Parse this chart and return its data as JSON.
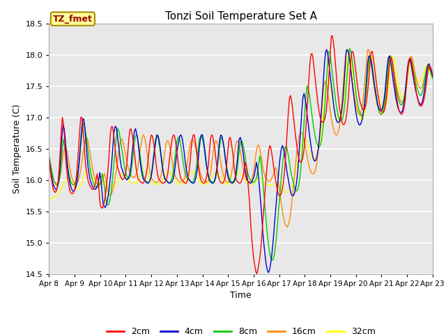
{
  "title": "Tonzi Soil Temperature Set A",
  "ylabel": "Soil Temperature (C)",
  "xlabel": "Time",
  "ylim": [
    14.5,
    18.5
  ],
  "label_text": "TZ_fmet",
  "bg_color": "#e8e8e8",
  "line_colors": {
    "2cm": "#ff0000",
    "4cm": "#0000cc",
    "8cm": "#00cc00",
    "16cm": "#ff8800",
    "32cm": "#ffff00"
  },
  "xtick_labels": [
    "Apr 8",
    "Apr 9",
    "Apr 10",
    "Apr 11",
    "Apr 12",
    "Apr 13",
    "Apr 14",
    "Apr 15",
    "Apr 16",
    "Apr 17",
    "Apr 18",
    "Apr 19",
    "Apr 20",
    "Apr 21",
    "Apr 22",
    "Apr 23"
  ],
  "data_2cm": [
    16.35,
    16.2,
    16.05,
    15.95,
    15.85,
    15.82,
    15.8,
    15.82,
    15.88,
    16.0,
    16.2,
    16.5,
    16.8,
    17.0,
    16.9,
    16.7,
    16.4,
    16.2,
    16.05,
    15.95,
    15.85,
    15.8,
    15.78,
    15.78,
    15.8,
    15.85,
    15.95,
    16.1,
    16.3,
    16.55,
    16.8,
    17.0,
    17.0,
    16.85,
    16.65,
    16.4,
    16.2,
    16.1,
    16.0,
    15.95,
    15.9,
    15.88,
    15.85,
    15.85,
    15.88,
    15.92,
    16.0,
    16.1,
    15.98,
    15.8,
    15.6,
    15.56,
    15.55,
    15.58,
    15.65,
    15.75,
    15.9,
    16.05,
    16.25,
    16.5,
    16.75,
    16.85,
    16.85,
    16.75,
    16.6,
    16.45,
    16.3,
    16.2,
    16.15,
    16.1,
    16.05,
    16.02,
    16.0,
    16.02,
    16.05,
    16.12,
    16.25,
    16.45,
    16.65,
    16.8,
    16.82,
    16.75,
    16.65,
    16.5,
    16.35,
    16.2,
    16.1,
    16.02,
    16.0,
    15.98,
    15.96,
    15.95,
    15.95,
    15.98,
    16.02,
    16.1,
    16.2,
    16.35,
    16.5,
    16.65,
    16.72,
    16.7,
    16.62,
    16.5,
    16.35,
    16.2,
    16.1,
    16.02,
    16.0,
    15.98,
    15.96,
    15.95,
    15.95,
    15.96,
    15.98,
    16.02,
    16.1,
    16.22,
    16.38,
    16.5,
    16.62,
    16.7,
    16.72,
    16.68,
    16.58,
    16.45,
    16.3,
    16.18,
    16.08,
    16.02,
    16.0,
    15.98,
    15.96,
    15.95,
    15.95,
    15.98,
    16.05,
    16.15,
    16.3,
    16.5,
    16.65,
    16.72,
    16.72,
    16.62,
    16.5,
    16.35,
    16.2,
    16.1,
    16.02,
    15.98,
    15.96,
    15.95,
    15.95,
    15.98,
    16.05,
    16.15,
    16.28,
    16.5,
    16.68,
    16.72,
    16.7,
    16.6,
    16.5,
    16.35,
    16.22,
    16.1,
    16.02,
    15.98,
    15.96,
    15.95,
    15.95,
    15.98,
    16.02,
    16.15,
    16.3,
    16.5,
    16.65,
    16.68,
    16.62,
    16.5,
    16.38,
    16.2,
    16.08,
    16.0,
    15.98,
    15.96,
    15.95,
    15.95,
    15.98,
    16.02,
    16.08,
    16.18,
    16.28,
    16.2,
    16.05,
    15.85,
    15.65,
    15.35,
    15.1,
    14.92,
    14.75,
    14.65,
    14.55,
    14.5,
    14.55,
    14.65,
    14.75,
    14.9,
    15.1,
    15.35,
    15.55,
    15.78,
    16.0,
    16.2,
    16.35,
    16.5,
    16.55,
    16.5,
    16.4,
    16.28,
    16.15,
    16.05,
    15.95,
    15.85,
    15.78,
    15.75,
    15.75,
    15.78,
    15.85,
    15.95,
    16.1,
    16.3,
    16.55,
    16.82,
    17.1,
    17.3,
    17.35,
    17.28,
    17.15,
    17.0,
    16.85,
    16.7,
    16.58,
    16.45,
    16.35,
    16.3,
    16.28,
    16.3,
    16.35,
    16.45,
    16.6,
    16.8,
    17.05,
    17.3,
    17.6,
    17.85,
    18.0,
    18.02,
    17.95,
    17.8,
    17.65,
    17.5,
    17.35,
    17.2,
    17.1,
    17.0,
    16.95,
    16.92,
    16.92,
    16.95,
    17.0,
    17.1,
    17.28,
    17.5,
    17.78,
    18.05,
    18.3,
    18.3,
    18.2,
    18.05,
    17.85,
    17.65,
    17.45,
    17.3,
    17.15,
    17.05,
    16.95,
    16.9,
    16.88,
    16.9,
    16.95,
    17.05,
    17.2,
    17.4,
    17.65,
    17.92,
    18.05,
    18.05,
    17.98,
    17.85,
    17.72,
    17.58,
    17.45,
    17.35,
    17.25,
    17.2,
    17.15,
    17.12,
    17.12,
    17.15,
    17.22,
    17.35,
    17.5,
    17.7,
    17.92,
    18.05,
    18.05,
    17.95,
    17.82,
    17.68,
    17.55,
    17.42,
    17.32,
    17.22,
    17.15,
    17.1,
    17.08,
    17.08,
    17.12,
    17.2,
    17.32,
    17.5,
    17.7,
    17.9,
    17.95,
    17.92,
    17.82,
    17.68,
    17.55,
    17.42,
    17.3,
    17.2,
    17.12,
    17.08,
    17.05,
    17.05,
    17.08,
    17.15,
    17.25,
    17.42,
    17.62,
    17.8,
    17.92,
    17.95,
    17.92,
    17.82,
    17.72,
    17.6,
    17.5,
    17.4,
    17.32,
    17.25,
    17.2,
    17.18,
    17.18,
    17.2,
    17.25,
    17.32,
    17.42,
    17.55,
    17.68,
    17.78,
    17.82,
    17.8,
    17.75,
    17.68
  ],
  "data_4cm": [
    16.35,
    16.22,
    16.1,
    16.0,
    15.92,
    15.88,
    15.85,
    15.85,
    15.9,
    16.0,
    16.18,
    16.45,
    16.72,
    16.88,
    16.82,
    16.65,
    16.42,
    16.22,
    16.08,
    15.98,
    15.9,
    15.85,
    15.82,
    15.82,
    15.85,
    15.9,
    15.98,
    16.12,
    16.32,
    16.55,
    16.78,
    16.95,
    16.98,
    16.85,
    16.65,
    16.42,
    16.22,
    16.1,
    16.0,
    15.95,
    15.9,
    15.88,
    15.85,
    15.85,
    15.88,
    15.92,
    16.0,
    16.12,
    16.0,
    15.82,
    15.62,
    15.58,
    15.56,
    15.6,
    15.68,
    15.78,
    15.92,
    16.08,
    16.28,
    16.52,
    16.75,
    16.85,
    16.85,
    16.75,
    16.6,
    16.45,
    16.3,
    16.2,
    16.15,
    16.1,
    16.05,
    16.02,
    16.0,
    16.02,
    16.05,
    16.12,
    16.25,
    16.45,
    16.62,
    16.78,
    16.82,
    16.75,
    16.65,
    16.5,
    16.35,
    16.2,
    16.1,
    16.02,
    16.0,
    15.98,
    15.96,
    15.95,
    15.95,
    15.98,
    16.02,
    16.1,
    16.22,
    16.38,
    16.52,
    16.65,
    16.72,
    16.7,
    16.62,
    16.5,
    16.35,
    16.2,
    16.1,
    16.02,
    16.0,
    15.98,
    15.96,
    15.95,
    15.95,
    15.96,
    15.98,
    16.02,
    16.12,
    16.25,
    16.4,
    16.52,
    16.62,
    16.7,
    16.72,
    16.68,
    16.58,
    16.45,
    16.3,
    16.18,
    16.08,
    16.02,
    16.0,
    15.98,
    15.96,
    15.95,
    15.95,
    15.98,
    16.05,
    16.15,
    16.3,
    16.5,
    16.65,
    16.72,
    16.72,
    16.62,
    16.5,
    16.35,
    16.2,
    16.1,
    16.02,
    15.98,
    15.96,
    15.95,
    15.95,
    15.98,
    16.05,
    16.15,
    16.28,
    16.48,
    16.65,
    16.72,
    16.7,
    16.6,
    16.5,
    16.35,
    16.22,
    16.1,
    16.02,
    15.98,
    15.96,
    15.95,
    15.95,
    15.98,
    16.02,
    16.12,
    16.28,
    16.48,
    16.65,
    16.68,
    16.62,
    16.5,
    16.38,
    16.22,
    16.1,
    16.0,
    15.98,
    15.96,
    15.95,
    15.95,
    15.98,
    16.02,
    16.08,
    16.18,
    16.28,
    16.18,
    16.02,
    15.82,
    15.62,
    15.38,
    15.12,
    14.95,
    14.78,
    14.65,
    14.56,
    14.52,
    14.56,
    14.65,
    14.78,
    14.95,
    15.15,
    15.38,
    15.58,
    15.8,
    16.02,
    16.22,
    16.38,
    16.5,
    16.55,
    16.5,
    16.4,
    16.28,
    16.15,
    16.05,
    15.95,
    15.85,
    15.78,
    15.75,
    15.75,
    15.78,
    15.85,
    15.95,
    16.1,
    16.32,
    16.58,
    16.85,
    17.12,
    17.32,
    17.38,
    17.3,
    17.18,
    17.02,
    16.88,
    16.72,
    16.6,
    16.48,
    16.38,
    16.32,
    16.3,
    16.32,
    16.38,
    16.48,
    16.62,
    16.82,
    17.08,
    17.35,
    17.62,
    17.88,
    18.05,
    18.08,
    18.0,
    17.85,
    17.7,
    17.55,
    17.4,
    17.25,
    17.12,
    17.02,
    16.95,
    16.92,
    16.92,
    16.95,
    17.02,
    17.12,
    17.28,
    17.52,
    17.78,
    18.05,
    18.08,
    18.05,
    17.95,
    17.8,
    17.65,
    17.48,
    17.35,
    17.2,
    17.08,
    16.98,
    16.92,
    16.88,
    16.88,
    16.92,
    16.98,
    17.08,
    17.22,
    17.42,
    17.65,
    17.88,
    17.98,
    17.98,
    17.9,
    17.78,
    17.65,
    17.52,
    17.42,
    17.32,
    17.22,
    17.15,
    17.12,
    17.1,
    17.12,
    17.18,
    17.28,
    17.42,
    17.62,
    17.82,
    17.95,
    17.98,
    17.9,
    17.78,
    17.65,
    17.52,
    17.42,
    17.3,
    17.22,
    17.15,
    17.1,
    17.08,
    17.08,
    17.1,
    17.18,
    17.28,
    17.45,
    17.65,
    17.82,
    17.92,
    17.92,
    17.85,
    17.75,
    17.65,
    17.55,
    17.45,
    17.38,
    17.32,
    17.25,
    17.22,
    17.2,
    17.22,
    17.28,
    17.38,
    17.5,
    17.65,
    17.78,
    17.85,
    17.85,
    17.78,
    17.72,
    17.65
  ],
  "data_8cm": [
    16.38,
    16.28,
    16.18,
    16.08,
    16.0,
    15.95,
    15.92,
    15.92,
    15.95,
    16.05,
    16.2,
    16.45,
    16.65,
    16.55,
    16.45,
    16.32,
    16.18,
    16.08,
    16.0,
    15.95,
    15.92,
    15.92,
    15.95,
    16.0,
    16.08,
    16.2,
    16.38,
    16.58,
    16.78,
    16.92,
    16.88,
    16.75,
    16.6,
    16.45,
    16.28,
    16.15,
    16.05,
    15.98,
    15.92,
    15.9,
    15.88,
    15.88,
    15.9,
    15.95,
    16.02,
    16.1,
    16.0,
    15.85,
    15.68,
    15.62,
    15.6,
    15.65,
    15.75,
    15.9,
    16.1,
    16.3,
    16.52,
    16.72,
    16.82,
    16.78,
    16.68,
    16.55,
    16.42,
    16.3,
    16.18,
    16.1,
    16.04,
    16.02,
    16.04,
    16.1,
    16.22,
    16.4,
    16.58,
    16.7,
    16.72,
    16.65,
    16.52,
    16.38,
    16.24,
    16.12,
    16.04,
    16.0,
    15.98,
    15.96,
    15.96,
    15.98,
    16.05,
    16.18,
    16.35,
    16.52,
    16.65,
    16.72,
    16.68,
    16.58,
    16.45,
    16.3,
    16.18,
    16.08,
    16.02,
    16.0,
    15.98,
    15.96,
    15.96,
    15.98,
    16.05,
    16.15,
    16.3,
    16.48,
    16.62,
    16.68,
    16.68,
    16.58,
    16.46,
    16.32,
    16.2,
    16.1,
    16.04,
    16.02,
    16.0,
    15.98,
    15.96,
    15.96,
    15.98,
    16.05,
    16.15,
    16.3,
    16.5,
    16.65,
    16.7,
    16.7,
    16.62,
    16.5,
    16.35,
    16.22,
    16.12,
    16.04,
    16.0,
    15.98,
    15.96,
    15.96,
    15.98,
    16.05,
    16.18,
    16.35,
    16.52,
    16.65,
    16.68,
    16.62,
    16.5,
    16.36,
    16.22,
    16.12,
    16.04,
    16.0,
    15.98,
    15.96,
    15.96,
    15.98,
    16.05,
    16.18,
    16.35,
    16.52,
    16.62,
    16.62,
    16.55,
    16.45,
    16.32,
    16.2,
    16.1,
    16.04,
    16.0,
    15.98,
    15.96,
    15.96,
    15.98,
    16.02,
    16.12,
    16.25,
    16.38,
    16.28,
    16.1,
    15.88,
    15.65,
    15.42,
    15.2,
    15.02,
    14.88,
    14.78,
    14.72,
    14.72,
    14.78,
    14.9,
    15.08,
    15.3,
    15.55,
    15.78,
    16.0,
    16.2,
    16.38,
    16.5,
    16.54,
    16.5,
    16.4,
    16.28,
    16.16,
    16.06,
    15.98,
    15.9,
    15.85,
    15.82,
    15.85,
    15.92,
    16.05,
    16.25,
    16.5,
    16.8,
    17.1,
    17.35,
    17.5,
    17.45,
    17.35,
    17.2,
    17.05,
    16.9,
    16.78,
    16.68,
    16.6,
    16.55,
    16.52,
    16.55,
    16.62,
    16.75,
    16.95,
    17.2,
    17.5,
    17.78,
    18.05,
    18.05,
    17.92,
    17.75,
    17.58,
    17.42,
    17.28,
    17.15,
    17.05,
    16.98,
    16.94,
    16.94,
    16.98,
    17.08,
    17.25,
    17.48,
    17.72,
    17.95,
    18.1,
    18.05,
    17.92,
    17.75,
    17.58,
    17.42,
    17.28,
    17.18,
    17.1,
    17.05,
    17.02,
    17.05,
    17.12,
    17.25,
    17.45,
    17.68,
    17.88,
    17.98,
    17.95,
    17.82,
    17.68,
    17.52,
    17.38,
    17.25,
    17.15,
    17.08,
    17.05,
    17.05,
    17.1,
    17.2,
    17.35,
    17.55,
    17.75,
    17.92,
    17.98,
    17.95,
    17.85,
    17.72,
    17.6,
    17.48,
    17.38,
    17.3,
    17.24,
    17.2,
    17.2,
    17.24,
    17.32,
    17.45,
    17.62,
    17.78,
    17.9,
    17.95,
    17.92,
    17.82,
    17.72,
    17.62,
    17.52,
    17.45,
    17.4,
    17.36,
    17.35,
    17.38,
    17.45,
    17.55,
    17.68,
    17.78,
    17.82,
    17.8,
    17.75,
    17.68,
    17.62
  ],
  "data_16cm": [
    16.2,
    16.15,
    16.1,
    16.05,
    16.0,
    15.96,
    15.94,
    15.94,
    15.96,
    16.02,
    16.12,
    16.28,
    16.42,
    16.5,
    16.52,
    16.48,
    16.38,
    16.26,
    16.15,
    16.06,
    16.0,
    15.96,
    15.94,
    15.94,
    15.96,
    16.0,
    16.08,
    16.18,
    16.3,
    16.45,
    16.58,
    16.65,
    16.68,
    16.62,
    16.52,
    16.4,
    16.28,
    16.18,
    16.08,
    16.02,
    15.96,
    15.94,
    15.92,
    15.92,
    15.94,
    15.98,
    16.05,
    16.1,
    16.02,
    15.92,
    15.8,
    15.76,
    15.76,
    15.78,
    15.84,
    15.93,
    16.04,
    16.16,
    16.3,
    16.45,
    16.58,
    16.65,
    16.65,
    16.58,
    16.48,
    16.38,
    16.28,
    16.2,
    16.14,
    16.1,
    16.06,
    16.04,
    16.04,
    16.06,
    16.1,
    16.18,
    16.3,
    16.45,
    16.58,
    16.68,
    16.72,
    16.68,
    16.58,
    16.44,
    16.3,
    16.18,
    16.08,
    16.02,
    16.0,
    15.98,
    15.97,
    15.96,
    15.97,
    15.98,
    16.02,
    16.08,
    16.18,
    16.3,
    16.44,
    16.56,
    16.62,
    16.62,
    16.56,
    16.46,
    16.34,
    16.22,
    16.12,
    16.06,
    16.02,
    16.0,
    15.98,
    15.97,
    15.97,
    15.98,
    16.0,
    16.04,
    16.12,
    16.24,
    16.38,
    16.5,
    16.6,
    16.64,
    16.64,
    16.6,
    16.52,
    16.42,
    16.32,
    16.22,
    16.12,
    16.06,
    16.02,
    16.0,
    15.98,
    15.97,
    15.97,
    15.98,
    16.04,
    16.14,
    16.28,
    16.44,
    16.56,
    16.62,
    16.62,
    16.56,
    16.46,
    16.34,
    16.22,
    16.12,
    16.05,
    16.0,
    15.98,
    15.96,
    15.97,
    15.98,
    16.04,
    16.14,
    16.26,
    16.42,
    16.54,
    16.62,
    16.62,
    16.56,
    16.48,
    16.36,
    16.24,
    16.14,
    16.07,
    16.02,
    16.0,
    15.98,
    15.97,
    15.98,
    16.02,
    16.1,
    16.22,
    16.38,
    16.5,
    16.56,
    16.54,
    16.46,
    16.35,
    16.22,
    16.12,
    16.06,
    16.02,
    16.0,
    15.98,
    15.98,
    16.0,
    16.04,
    16.08,
    16.14,
    16.2,
    16.14,
    16.02,
    15.88,
    15.73,
    15.6,
    15.47,
    15.37,
    15.3,
    15.26,
    15.25,
    15.3,
    15.38,
    15.52,
    15.68,
    15.88,
    16.08,
    16.28,
    16.46,
    16.6,
    16.7,
    16.75,
    16.76,
    16.72,
    16.65,
    16.55,
    16.44,
    16.34,
    16.24,
    16.18,
    16.12,
    16.1,
    16.1,
    16.12,
    16.18,
    16.28,
    16.45,
    16.65,
    16.9,
    17.15,
    17.38,
    17.52,
    17.58,
    17.52,
    17.42,
    17.28,
    17.14,
    17.0,
    16.9,
    16.82,
    16.75,
    16.72,
    16.72,
    16.76,
    16.85,
    17.0,
    17.2,
    17.45,
    17.72,
    17.95,
    18.08,
    18.08,
    18.0,
    17.85,
    17.7,
    17.55,
    17.42,
    17.3,
    17.2,
    17.12,
    17.06,
    17.04,
    17.06,
    17.12,
    17.25,
    17.45,
    17.68,
    17.9,
    18.08,
    18.08,
    17.98,
    17.84,
    17.7,
    17.55,
    17.42,
    17.3,
    17.2,
    17.14,
    17.08,
    17.05,
    17.05,
    17.08,
    17.15,
    17.28,
    17.48,
    17.68,
    17.86,
    17.98,
    17.98,
    17.9,
    17.78,
    17.65,
    17.54,
    17.44,
    17.36,
    17.3,
    17.26,
    17.24,
    17.26,
    17.32,
    17.42,
    17.56,
    17.72,
    17.86,
    17.95,
    17.98,
    17.92,
    17.82,
    17.72,
    17.62,
    17.55,
    17.5,
    17.47,
    17.46,
    17.48,
    17.54,
    17.62,
    17.72,
    17.8,
    17.84,
    17.82,
    17.76,
    17.7,
    17.64
  ],
  "data_32cm": [
    15.7,
    15.7,
    15.7,
    15.72,
    15.72,
    15.72,
    15.74,
    15.76,
    15.78,
    15.82,
    15.86,
    15.9,
    15.94,
    15.97,
    15.99,
    16.0,
    16.01,
    16.0,
    15.99,
    15.96,
    15.93,
    15.9,
    15.88,
    15.86,
    15.86,
    15.87,
    15.89,
    15.93,
    15.97,
    16.02,
    16.07,
    16.12,
    16.15,
    16.16,
    16.14,
    16.11,
    16.07,
    16.03,
    16.0,
    15.97,
    15.95,
    15.93,
    15.92,
    15.92,
    15.92,
    15.93,
    15.95,
    15.97,
    15.97,
    15.95,
    15.92,
    15.9,
    15.88,
    15.87,
    15.87,
    15.88,
    15.9,
    15.93,
    15.97,
    16.01,
    16.05,
    16.08,
    16.1,
    16.1,
    16.09,
    16.07,
    16.04,
    16.01,
    15.98,
    15.96,
    15.95,
    15.94,
    15.94,
    15.95,
    15.96,
    15.98,
    16.01,
    16.05,
    16.08,
    16.12,
    16.14,
    16.14,
    16.12,
    16.09,
    16.06,
    16.02,
    15.99,
    15.97,
    15.95,
    15.94,
    15.93,
    15.93,
    15.93,
    15.94,
    15.95,
    15.97,
    16.0,
    16.03,
    16.07,
    16.1,
    16.12,
    16.13,
    16.12,
    16.1,
    16.07,
    16.04,
    16.01,
    15.98,
    15.96,
    15.95,
    15.94,
    15.93,
    15.93,
    15.94,
    15.95,
    15.97,
    16.0,
    16.03,
    16.07,
    16.1,
    16.12,
    16.13,
    16.13,
    16.11,
    16.08,
    16.05,
    16.02,
    15.99,
    15.96,
    15.95,
    15.94,
    15.93,
    15.93,
    15.94,
    15.95,
    15.97,
    16.0,
    16.03,
    16.07,
    16.1,
    16.12,
    16.13,
    16.12,
    16.1,
    16.07,
    16.04,
    16.01,
    15.98,
    15.96,
    15.95,
    15.94,
    15.93,
    15.93,
    15.94,
    15.95,
    15.97,
    16.0,
    16.03,
    16.07,
    16.1,
    16.12,
    16.12,
    16.1,
    16.07,
    16.04,
    16.01,
    15.99,
    15.97,
    15.95,
    15.94,
    15.93,
    15.93,
    15.94,
    15.95,
    15.97,
    15.99,
    16.01,
    16.02,
    16.02,
    16.01,
    15.99,
    15.97,
    15.95,
    15.93,
    15.92,
    15.92,
    15.92,
    15.92,
    15.92,
    15.93,
    15.93,
    15.94,
    15.95,
    15.94,
    15.93,
    15.92,
    15.9,
    15.88,
    15.84,
    15.82,
    15.8,
    15.8,
    15.8,
    15.82,
    15.85,
    15.89,
    15.95,
    16.02,
    16.1,
    16.19,
    16.28,
    16.37,
    16.46,
    16.54,
    16.6,
    16.64,
    16.66,
    16.64,
    16.6,
    16.55,
    16.48,
    16.42,
    16.37,
    16.33,
    16.32,
    16.33,
    16.36,
    16.42,
    16.52,
    16.65,
    16.82,
    17.0,
    17.2,
    17.38,
    17.54,
    17.62,
    17.62,
    17.56,
    17.46,
    17.35,
    17.24,
    17.14,
    17.06,
    17.0,
    16.96,
    16.95,
    16.96,
    17.02,
    17.12,
    17.28,
    17.5,
    17.72,
    17.92,
    18.0,
    18.0,
    17.93,
    17.8,
    17.65,
    17.5,
    17.36,
    17.24,
    17.14,
    17.06,
    17.0,
    16.97,
    16.97,
    17.01,
    17.1,
    17.24,
    17.44,
    17.66,
    17.86,
    17.98,
    17.98,
    17.9,
    17.77,
    17.63,
    17.5,
    17.39,
    17.3,
    17.22,
    17.17,
    17.14,
    17.14,
    17.17,
    17.25,
    17.37,
    17.55,
    17.74,
    17.88,
    17.96,
    17.96,
    17.88,
    17.76,
    17.63,
    17.52,
    17.43,
    17.37,
    17.33,
    17.32,
    17.34,
    17.4,
    17.5,
    17.62,
    17.76,
    17.86,
    17.9,
    17.88,
    17.8,
    17.71,
    17.65,
    17.6,
    17.57,
    17.56,
    17.57,
    17.62,
    17.68,
    17.74,
    17.8,
    17.83,
    17.82,
    17.78,
    17.72,
    17.66,
    17.62
  ]
}
